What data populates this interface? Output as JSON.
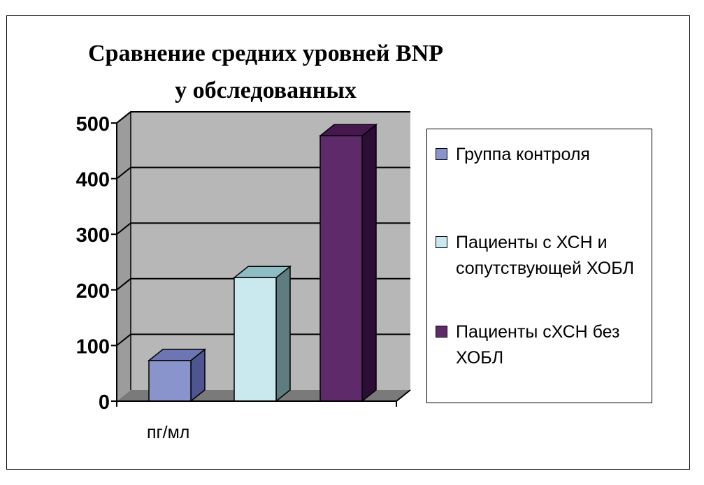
{
  "chart_data": {
    "type": "bar",
    "title": [
      "Сравнение средних уровней BNP",
      "у обследованных"
    ],
    "xlabel": "пг/мл",
    "ylabel": "",
    "ylim": [
      0,
      500
    ],
    "yticks": [
      "0",
      "100",
      "200",
      "300",
      "400",
      "500"
    ],
    "grid": true,
    "legend_position": "right",
    "series": [
      {
        "name": "Группа контроля",
        "value": 73,
        "color": "#8a94cc",
        "side": "#4e5590",
        "top": "#6d76b2"
      },
      {
        "name": "Пациенты с ХСН и сопутствующей ХОБЛ",
        "value": 222,
        "color": "#c9e9ef",
        "side": "#5f7c80",
        "top": "#8fbdc4"
      },
      {
        "name": "Пациенты  сХСН без ХОБЛ",
        "value": 477,
        "color": "#5e2a6a",
        "side": "#2b0d36",
        "top": "#47184f"
      }
    ],
    "wall_color": "#b7b7b7",
    "floor_color": "#7a7a7a"
  }
}
